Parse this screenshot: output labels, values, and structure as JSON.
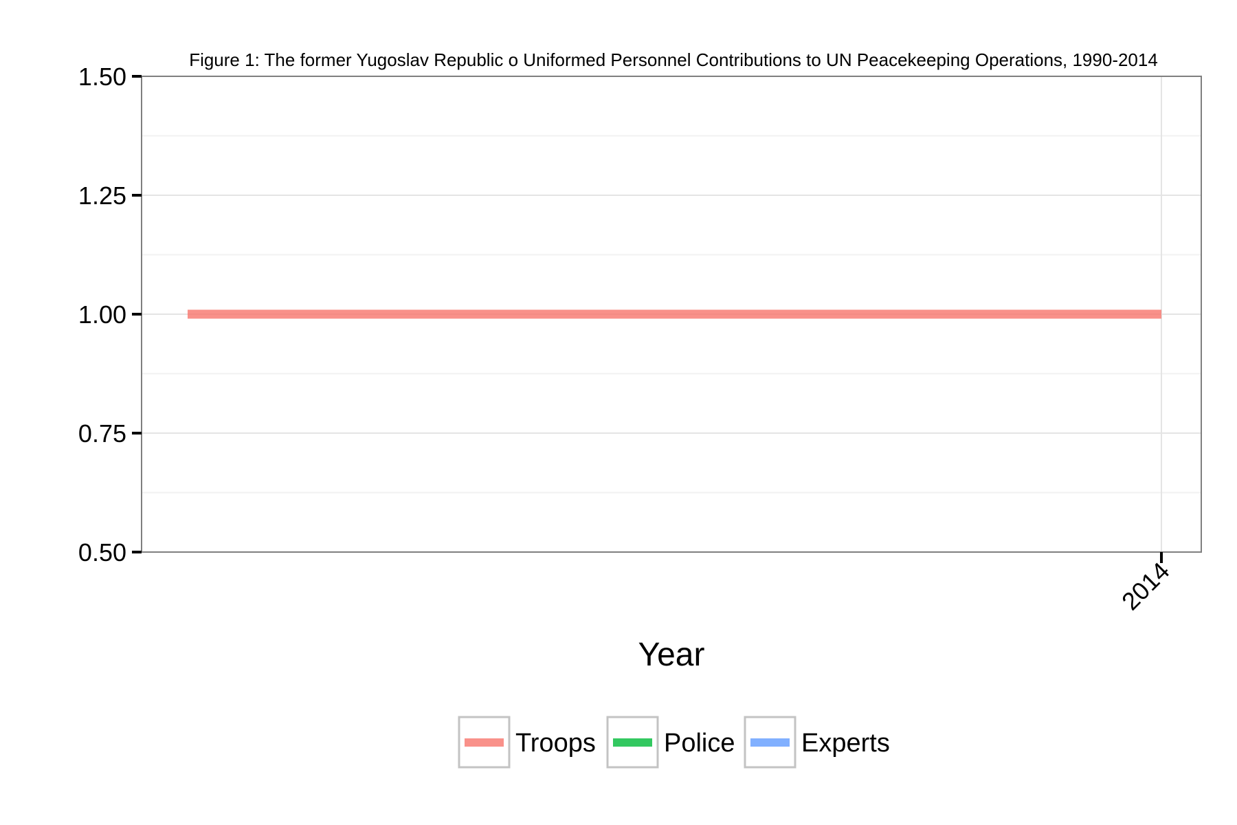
{
  "chart_data": {
    "type": "line",
    "title": "Figure 1: The former Yugoslav Republic o Uniformed Personnel Contributions to UN Peacekeeping Operations, 1990-2014",
    "xlabel": "Year",
    "ylabel": "",
    "x_ticks": [
      "2014"
    ],
    "ylim": [
      0.5,
      1.5
    ],
    "y_ticks": [
      "0.50",
      "0.75",
      "1.00",
      "1.25",
      "1.50"
    ],
    "grid": true,
    "legend_position": "bottom",
    "series": [
      {
        "name": "Troops",
        "color": "#F8766D",
        "points": [
          {
            "x": "2014",
            "y": 1
          }
        ]
      },
      {
        "name": "Police",
        "color": "#00BA38",
        "points": []
      },
      {
        "name": "Experts",
        "color": "#619CFF",
        "points": []
      }
    ]
  }
}
